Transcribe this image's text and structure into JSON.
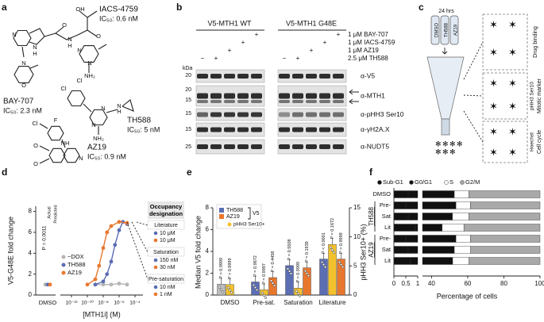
{
  "panel_labels": [
    "a",
    "b",
    "c",
    "d",
    "e",
    "f"
  ],
  "structures": {
    "compounds": [
      {
        "name": "IACS-4759",
        "ic50": "IC₅₀: 0.6 nM"
      },
      {
        "name": "BAY-707",
        "ic50": "IC₅₀: 2.3 nM"
      },
      {
        "name": "TH588",
        "ic50": "IC₅₀: 5 nM"
      },
      {
        "name": "AZ19",
        "ic50": "IC₅₀: 0.9 nM"
      }
    ],
    "atoms": [
      "N",
      "N",
      "H",
      "O",
      "N",
      "H",
      "N",
      "O",
      "OH",
      "O",
      "N",
      "N",
      "NH₂",
      "Cl",
      "Cl",
      "N",
      "N",
      "NH₂",
      "N",
      "H",
      "Cl",
      "F",
      "NH",
      "O",
      "O",
      "N"
    ]
  },
  "blot": {
    "groups": [
      "V5-MTH1 WT",
      "V5-MTH1 G48E"
    ],
    "treatments": [
      "1 μM BAY-707",
      "1 μM IACS-4759",
      "1 μM AZ19",
      "2.5 μM TH588"
    ],
    "signs": [
      [
        null,
        null,
        null,
        null,
        "+",
        null,
        null,
        null,
        null,
        "+"
      ],
      [
        null,
        null,
        null,
        "+",
        null,
        null,
        null,
        null,
        "+",
        null
      ],
      [
        null,
        null,
        "+",
        null,
        null,
        null,
        null,
        "+",
        null,
        null
      ],
      [
        "−",
        "+",
        null,
        null,
        null,
        "−",
        "+",
        null,
        null,
        null
      ]
    ],
    "kda_title": "kDa",
    "kda": [
      20,
      20,
      15,
      15,
      15,
      25
    ],
    "antibodies": [
      "α-V5",
      "α-MTH1",
      "α-pHH3 Ser10",
      "α-γH2A.X",
      "α-NUDT5"
    ]
  },
  "diagram": {
    "time": "24 hrs",
    "tubes": [
      "DMSO",
      "TH588",
      "AZ19"
    ],
    "readouts": [
      {
        "title": "Drug binding"
      },
      {
        "marker": "pHH3 Ser10",
        "title": "Mitotic marker"
      },
      {
        "marker": "Hoechst",
        "title": "Cell cycle"
      }
    ]
  },
  "dose_response": {
    "type": "line",
    "y_label": "V5-G48E fold change",
    "x_label": "[MTH1i] (M)",
    "dmso_label": "DMSO",
    "xscale": "log",
    "xlim": [
      1e-13,
      0.001
    ],
    "xticks": [
      {
        "value": 1e-12,
        "label": "10⁻¹²"
      },
      {
        "value": 1e-10,
        "label": "10⁻¹⁰"
      },
      {
        "value": 1e-08,
        "label": "10⁻⁸"
      },
      {
        "value": 1e-06,
        "label": "10⁻⁶"
      },
      {
        "value": 0.0001,
        "label": "10⁻⁴"
      }
    ],
    "ylim": [
      0,
      8.5
    ],
    "yticks": [
      0,
      2,
      4,
      6,
      8
    ],
    "p_value": "P = 0.0011",
    "actual": "Actual",
    "predicted": "Predicted",
    "series": [
      {
        "name": "−DOX",
        "color": "#b5b5b5",
        "dmso": 1,
        "x": [
          1e-09,
          1e-08,
          1e-07,
          1e-06,
          1e-05
        ],
        "values": [
          1,
          1,
          1,
          1.1,
          1
        ]
      },
      {
        "name": "TH588",
        "color": "#5b6db3",
        "dmso": 1,
        "x": [
          1e-09,
          1e-08,
          3e-08,
          1e-07,
          3e-07,
          1e-06,
          3e-06,
          1e-05
        ],
        "values": [
          1,
          1.3,
          2,
          3.2,
          4.8,
          6.2,
          7,
          6.8
        ]
      },
      {
        "name": "AZ19",
        "color": "#e8772e",
        "dmso": 1,
        "x": [
          1e-10,
          1e-09,
          3e-09,
          1e-08,
          3e-08,
          1e-07,
          1e-06,
          1e-05
        ],
        "values": [
          1,
          1.5,
          2.8,
          4.5,
          6,
          6.6,
          7,
          6.9
        ]
      }
    ],
    "occupancy": {
      "title": "Occupancy designation",
      "levels": [
        {
          "name": "Literature",
          "doses": [
            "10 μM",
            "10 μM"
          ]
        },
        {
          "name": "Saturation",
          "doses": [
            "150 nM",
            "30 nM"
          ]
        },
        {
          "name": "Pre-saturation",
          "doses": [
            "10 nM",
            "1 nM"
          ]
        }
      ]
    }
  },
  "v5_bars": {
    "type": "bar",
    "y_label": "Median V5 fold change",
    "y2_label": "pHH3 Ser10+ (%)",
    "categories": [
      "DMSO",
      "Pre-sat.",
      "Saturation",
      "Literature"
    ],
    "ylim": [
      0,
      8
    ],
    "yticks": [
      0,
      2,
      4,
      6,
      8
    ],
    "y2lim": [
      0,
      15
    ],
    "y2ticks": [
      0,
      5,
      10,
      15
    ],
    "group_label": "V5",
    "dmso_color": "#bdbdbd",
    "series": [
      {
        "name": "TH588",
        "color": "#5b6db3",
        "values": [
          1.0,
          1.2,
          2.7,
          3.3
        ]
      },
      {
        "name": "pHH3 Ser10+",
        "color": "#f3c12c",
        "axis": "y2",
        "values": [
          1.8,
          0.9,
          1.2,
          8.7
        ]
      },
      {
        "name": "AZ19",
        "color": "#e8772e",
        "values": [
          null,
          1.6,
          2.5,
          3.3
        ]
      }
    ],
    "p_values": [
      "P > 0.9999",
      "P > 0.9999",
      "P = 0.9672",
      "P = 0.9997",
      "P = 0.4458",
      "P = 0.5508",
      "P > 0.9999",
      "P = 0.1939",
      "P < 0.0001",
      "P = 0.1672",
      "P > 0.9999"
    ]
  },
  "cell_cycle": {
    "type": "bar",
    "orientation": "horizontal",
    "stacked": true,
    "x_label": "Percentage of cells",
    "categories": [
      "DMSO",
      "Pre-",
      "Sat",
      "Lit",
      "Pre-",
      "Sat",
      "Lit"
    ],
    "groups": [
      {
        "name": "TH588",
        "rows": [
          1,
          3
        ]
      },
      {
        "name": "AZ19",
        "rows": [
          4,
          6
        ]
      }
    ],
    "xlim": [
      0,
      1
    ],
    "xticks": [
      0,
      0.5,
      1
    ],
    "x2lim": [
      35,
      100
    ],
    "x2ticks": [
      40,
      60,
      80,
      100
    ],
    "series": [
      {
        "name": "Sub-G1",
        "color": "#111111",
        "values": [
          0.6,
          0.5,
          0.6,
          0.9,
          0.5,
          0.6,
          0.7
        ]
      },
      {
        "name": "G0/G1",
        "color": "#111111",
        "values": [
          52,
          53,
          51,
          45,
          53,
          52,
          51
        ]
      },
      {
        "name": "S",
        "color": "#ffffff",
        "values": [
          8,
          8,
          9,
          12,
          8,
          9,
          9
        ]
      },
      {
        "name": "G2/M",
        "color": "#a9a9a9",
        "values": [
          39.4,
          38.5,
          39.4,
          42.1,
          38.5,
          38.4,
          39.3
        ]
      }
    ]
  }
}
